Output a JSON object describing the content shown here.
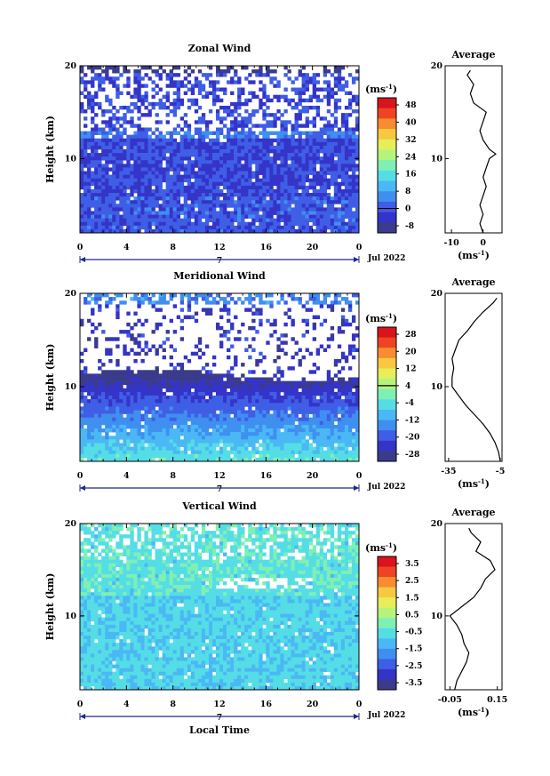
{
  "panels": [
    {
      "title": "Zonal Wind",
      "y_label": "Height (km)",
      "y_ticks": [
        "20",
        "10"
      ],
      "x_ticks": [
        "0",
        "4",
        "8",
        "12",
        "16",
        "20",
        "0"
      ],
      "day_label": "7",
      "date_label": "Jul 2022",
      "colorbar": {
        "unit": "(ms",
        "exponent": "-1",
        "unit_end": ")",
        "labels": [
          "48",
          "40",
          "32",
          "24",
          "16",
          "8",
          "0",
          "-8"
        ]
      },
      "profile": {
        "title": "Average",
        "y_ticks": [
          "20",
          "10"
        ],
        "x_ticks": [
          "-10",
          "0"
        ],
        "x_label": "(ms",
        "exponent": "-1",
        "x_label_end": ")"
      }
    },
    {
      "title": "Meridional Wind",
      "y_label": "Height (km)",
      "y_ticks": [
        "20",
        "10"
      ],
      "x_ticks": [
        "0",
        "4",
        "8",
        "12",
        "16",
        "20",
        "0"
      ],
      "day_label": "7",
      "date_label": "Jul 2022",
      "colorbar": {
        "unit": "(ms",
        "exponent": "-1",
        "unit_end": ")",
        "labels": [
          "28",
          "20",
          "12",
          "4",
          "-4",
          "-12",
          "-20",
          "-28"
        ]
      },
      "profile": {
        "title": "Average",
        "y_ticks": [
          "20",
          "10"
        ],
        "x_ticks": [
          "-35",
          "-5"
        ],
        "x_label": "(ms",
        "exponent": "-1",
        "x_label_end": ")"
      }
    },
    {
      "title": "Vertical Wind",
      "y_label": "Height (km)",
      "y_ticks": [
        "20",
        "10"
      ],
      "x_ticks": [
        "0",
        "4",
        "8",
        "12",
        "16",
        "20",
        "0"
      ],
      "day_label": "7",
      "date_label": "Jul 2022",
      "x_axis_label": "Local Time",
      "colorbar": {
        "unit": "(ms",
        "exponent": "-1",
        "unit_end": ")",
        "labels": [
          "3.5",
          "2.5",
          "1.5",
          "0.5",
          "-0.5",
          "-1.5",
          "-2.5",
          "-3.5"
        ]
      },
      "profile": {
        "title": "Average",
        "y_ticks": [
          "20",
          "10"
        ],
        "x_ticks": [
          "-0.05",
          "0.15"
        ],
        "x_label": "(ms",
        "exponent": "-1",
        "x_label_end": ")"
      }
    }
  ],
  "chart_data": [
    {
      "type": "heatmap",
      "title": "Zonal Wind",
      "xlabel": "",
      "ylabel": "Height (km)",
      "xlim": [
        0,
        24
      ],
      "ylim": [
        2,
        20
      ],
      "colorbar_range": [
        -8,
        52
      ],
      "colors": [
        "#3b3b8c",
        "#3434c8",
        "#3f5ee6",
        "#3f8ff0",
        "#4ab8f4",
        "#55dde6",
        "#7ff0b4",
        "#b4f47c",
        "#e6ee5a",
        "#f8c840",
        "#f88c30",
        "#ee4424",
        "#d8141c"
      ],
      "profile": {
        "title": "Average",
        "heights": [
          2,
          3,
          4,
          5,
          6,
          7,
          8,
          9,
          10,
          10.5,
          11,
          12,
          13,
          14,
          15,
          16,
          17,
          18,
          19,
          19.5
        ],
        "values": [
          0,
          -1,
          0,
          -1,
          0,
          1,
          0,
          1,
          2,
          4,
          2,
          0,
          -1,
          0,
          1,
          -3,
          -4,
          -3,
          -5,
          -4
        ]
      }
    },
    {
      "type": "heatmap",
      "title": "Meridional Wind",
      "xlabel": "",
      "ylabel": "Height (km)",
      "xlim": [
        0,
        24
      ],
      "ylim": [
        2,
        20
      ],
      "colorbar_range": [
        -32,
        32
      ],
      "colors": [
        "#3b3b8c",
        "#3434c8",
        "#3f5ee6",
        "#3f8ff0",
        "#4ab8f4",
        "#55dde6",
        "#7ff0b4",
        "#b4f47c",
        "#e6ee5a",
        "#f8c840",
        "#f88c30",
        "#ee4424",
        "#d8141c"
      ],
      "profile": {
        "title": "Average",
        "heights": [
          2,
          3,
          4,
          5,
          6,
          7,
          8,
          9,
          10,
          11,
          12,
          13,
          14,
          15,
          16,
          17,
          18,
          19,
          19.5
        ],
        "values": [
          -5,
          -6,
          -8,
          -11,
          -15,
          -20,
          -25,
          -29,
          -33,
          -33,
          -32,
          -33,
          -31,
          -29,
          -24,
          -20,
          -15,
          -9,
          -7
        ]
      }
    },
    {
      "type": "heatmap",
      "title": "Vertical Wind",
      "xlabel": "Local Time",
      "ylabel": "Height (km)",
      "xlim": [
        0,
        24
      ],
      "ylim": [
        2,
        20
      ],
      "colorbar_range": [
        -4,
        4
      ],
      "colors": [
        "#3b3b8c",
        "#3434c8",
        "#3f5ee6",
        "#3f8ff0",
        "#4ab8f4",
        "#55dde6",
        "#7ff0b4",
        "#b4f47c",
        "#e6ee5a",
        "#f8c840",
        "#f88c30",
        "#ee4424",
        "#d8141c"
      ],
      "profile": {
        "title": "Average",
        "heights": [
          2,
          3,
          4,
          5,
          6,
          7,
          8,
          9,
          10,
          11,
          12,
          13,
          14,
          15,
          16,
          17,
          18,
          19,
          19.5
        ],
        "values": [
          -0.03,
          -0.02,
          0.0,
          0.02,
          0.03,
          0.01,
          0.0,
          -0.02,
          -0.05,
          0.0,
          0.05,
          0.08,
          0.1,
          0.14,
          0.12,
          0.06,
          0.08,
          0.04,
          0.03
        ]
      }
    }
  ]
}
